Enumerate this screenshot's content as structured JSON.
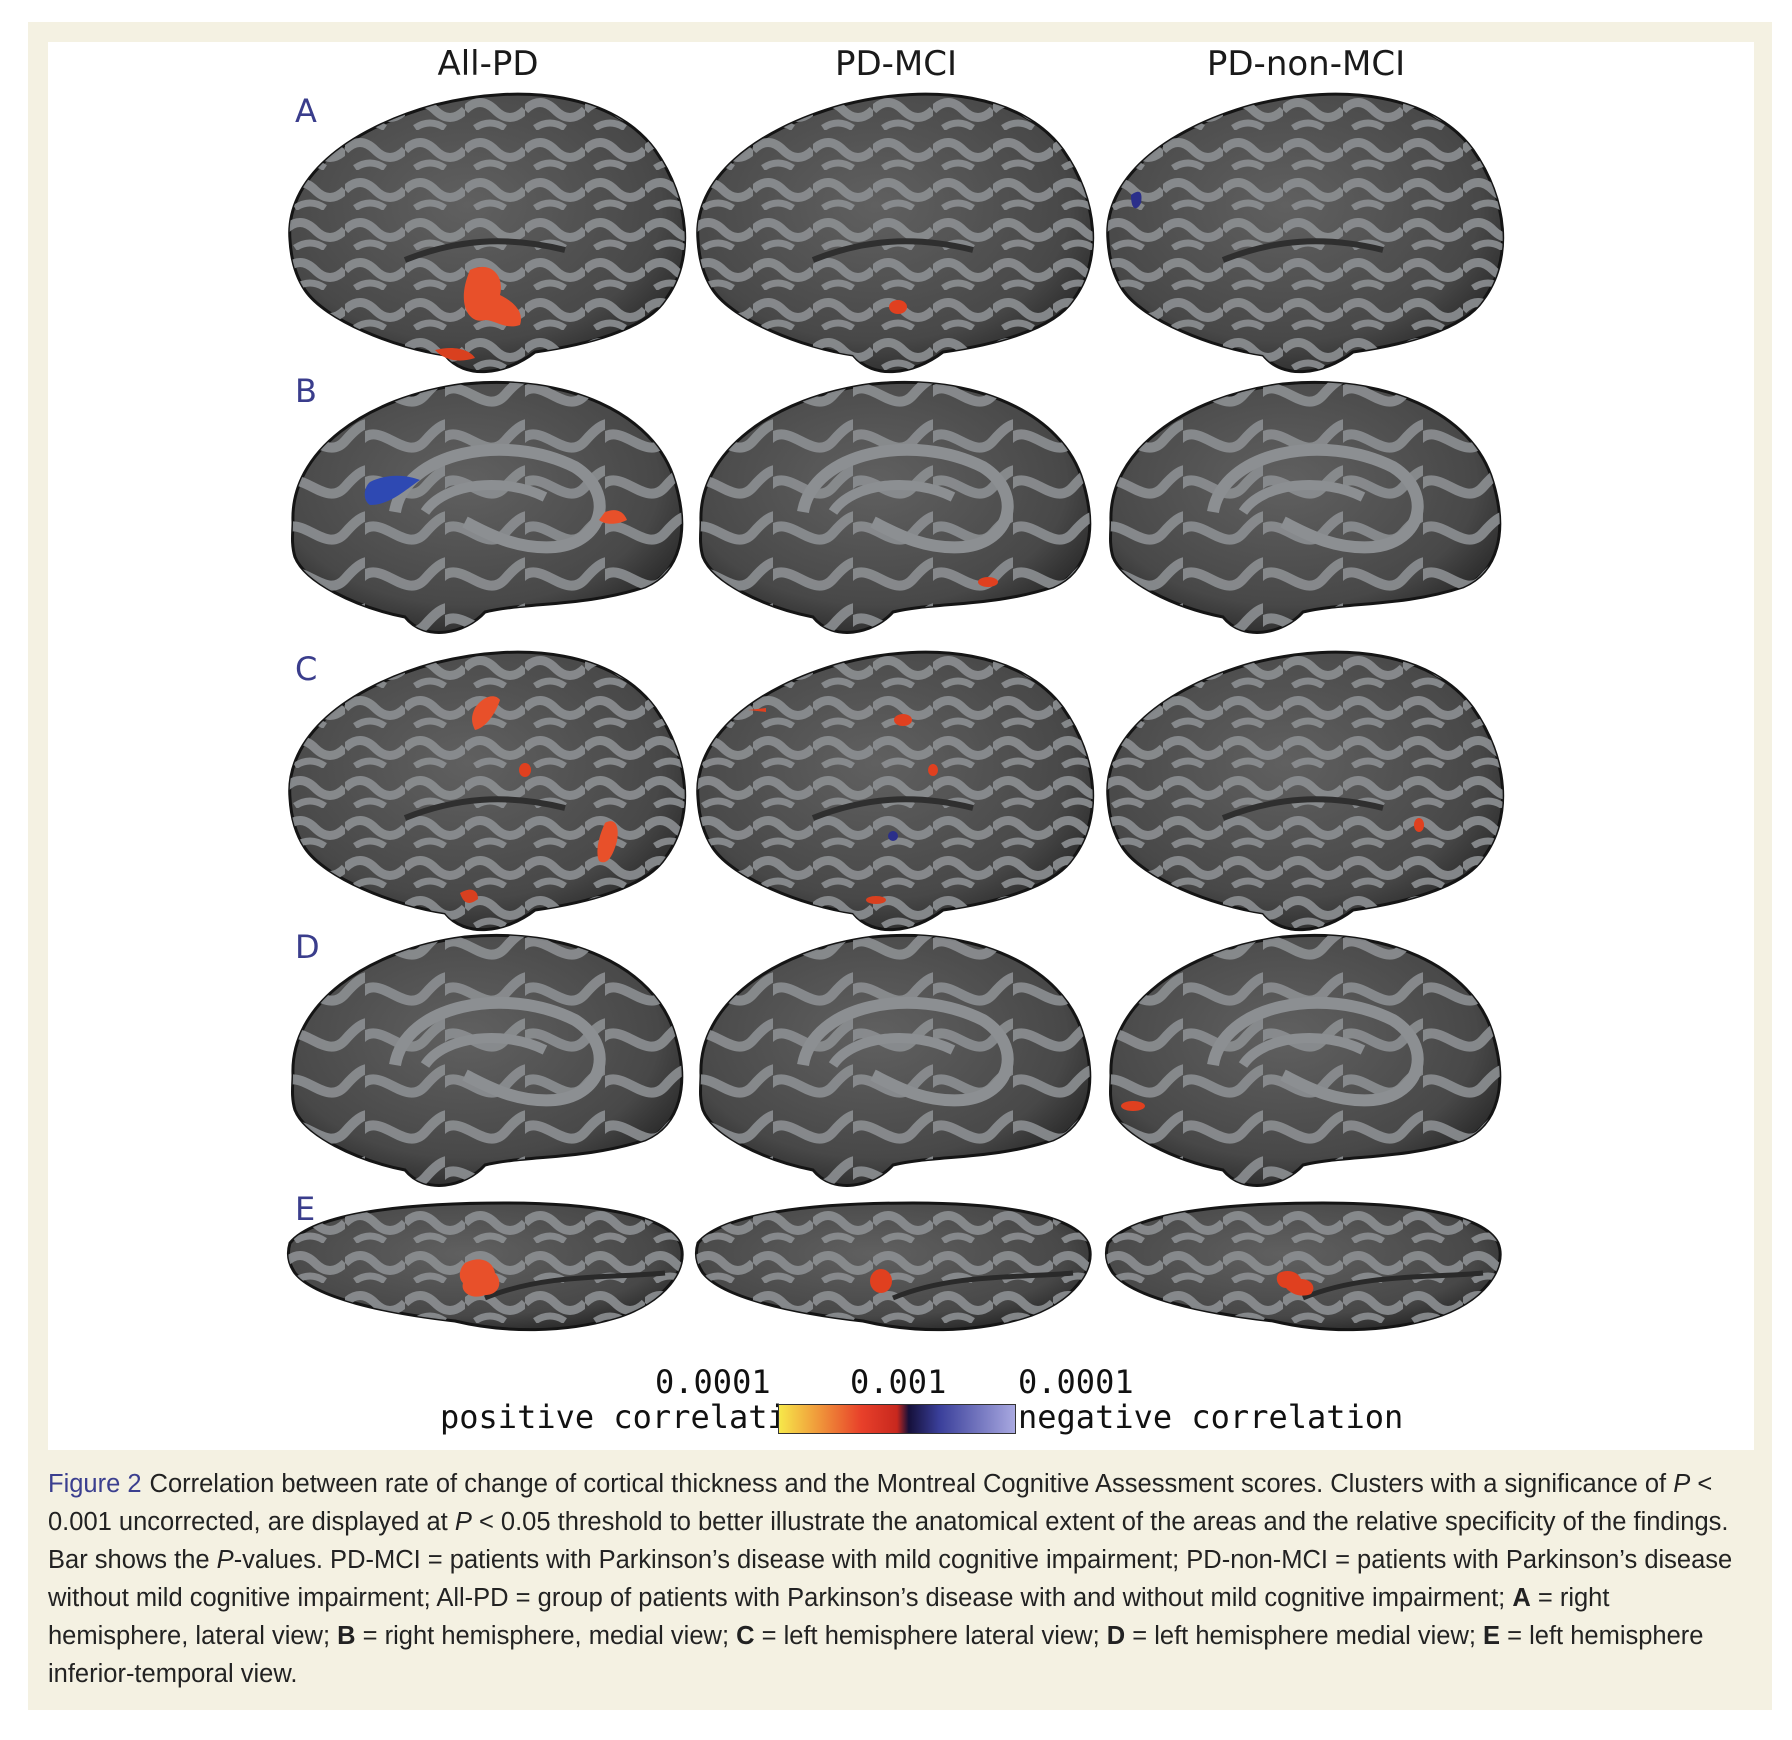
{
  "figure": {
    "columns": [
      "All-PD",
      "PD-MCI",
      "PD-non-MCI"
    ],
    "rows": [
      "A",
      "B",
      "C",
      "D",
      "E"
    ],
    "colorbar": {
      "ticks": [
        "0.0001",
        "0.001",
        "0.0001"
      ],
      "left_label": "positive correlation",
      "right_label": "negative correlation",
      "colors": [
        "#f7e84a",
        "#e8402a",
        "#c8281e",
        "#15103a",
        "#3a3f9a",
        "#a8a8e0"
      ]
    }
  },
  "caption": {
    "figure_label": "Figure 2",
    "text_1": "Correlation between rate of change of cortical thickness and the Montreal Cognitive Assessment scores. Clusters with a significance of ",
    "p1": "P",
    "text_2": " < 0.001 uncorrected, are displayed at ",
    "p2": "P",
    "text_3": " < 0.05 threshold to better illustrate the anatomical extent of the areas and the relative specificity of the findings. Bar shows the ",
    "p3": "P",
    "text_4": "-values. PD-MCI = patients with Parkinson’s disease with mild cognitive impairment; PD-non-MCI = patients with Parkinson’s disease without mild cognitive impairment; All-PD = group of patients with Parkinson’s disease with and without mild cognitive impairment; ",
    "A": "A",
    "A_text": " = right hemisphere, lateral view; ",
    "B": "B",
    "B_text": " = right hemisphere, medial view; ",
    "C": "C",
    "C_text": " = left hemisphere lateral view; ",
    "D": "D",
    "D_text": " = left hemisphere medial view; ",
    "E": "E",
    "E_text": " = left hemisphere inferior-temporal view."
  }
}
